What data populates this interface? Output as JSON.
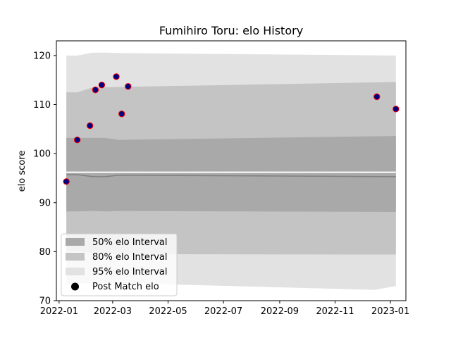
{
  "chart_data": {
    "type": "scatter",
    "title": "Fumihiro Toru: elo History",
    "xlabel": "",
    "ylabel": "elo score",
    "ylim": [
      70,
      123
    ],
    "xlim": [
      "2021-12-29",
      "2023-01-18"
    ],
    "x_ticks": [
      "2022-01",
      "2022-03",
      "2022-05",
      "2022-07",
      "2022-09",
      "2022-11",
      "2023-01"
    ],
    "y_ticks": [
      70,
      80,
      90,
      100,
      110,
      120
    ],
    "grid": false,
    "legend_position": "lower-left",
    "legend": {
      "band50": "50% elo Interval",
      "band80": "80% elo Interval",
      "band95": "95% elo Interval",
      "points": "Post Match elo"
    },
    "colors": {
      "band50": "#a9a9a9",
      "band80": "#c4c4c4",
      "band95": "#e2e2e2",
      "point_fill": "#000080",
      "point_edge": "#ff0000",
      "mean_line": "#808080",
      "median_line": "#ffffff"
    },
    "band_dates": [
      "2022-01-09",
      "2022-01-21",
      "2022-02-07",
      "2022-02-21",
      "2022-03-08",
      "2023-01-07"
    ],
    "bands": {
      "p95_upper": [
        120.0,
        120.0,
        120.6,
        120.6,
        120.5,
        120.0
      ],
      "p80_upper": [
        112.5,
        112.5,
        113.5,
        113.5,
        113.6,
        114.6
      ],
      "p50_upper": [
        103.2,
        103.2,
        103.2,
        103.2,
        102.8,
        103.6
      ],
      "p50_lower": [
        88.2,
        88.2,
        88.3,
        88.2,
        88.3,
        88.1
      ],
      "p80_lower": [
        80.0,
        80.0,
        79.8,
        79.5,
        79.5,
        79.4
      ],
      "p95_lower": [
        73.3,
        73.5,
        73.6,
        73.6,
        73.6,
        73.0
      ],
      "p95_lower_dip": {
        "date": "2022-12-15",
        "value": 72.2
      }
    },
    "mean_line": {
      "dates": [
        "2022-01-09",
        "2022-01-21",
        "2022-02-07",
        "2022-02-21",
        "2022-03-08",
        "2023-01-07"
      ],
      "values": [
        95.7,
        95.7,
        95.3,
        95.3,
        95.6,
        95.3
      ]
    },
    "median_line": {
      "dates": [
        "2022-01-09",
        "2023-01-07"
      ],
      "values": [
        96.2,
        96.2
      ]
    },
    "points": [
      {
        "date": "2022-01-09",
        "elo": 94.3
      },
      {
        "date": "2022-01-21",
        "elo": 102.8
      },
      {
        "date": "2022-02-04",
        "elo": 105.7
      },
      {
        "date": "2022-02-10",
        "elo": 113.0
      },
      {
        "date": "2022-02-17",
        "elo": 114.0
      },
      {
        "date": "2022-03-05",
        "elo": 115.7
      },
      {
        "date": "2022-03-11",
        "elo": 108.1
      },
      {
        "date": "2022-03-18",
        "elo": 113.7
      },
      {
        "date": "2022-12-17",
        "elo": 111.6
      },
      {
        "date": "2023-01-07",
        "elo": 109.1
      }
    ]
  }
}
